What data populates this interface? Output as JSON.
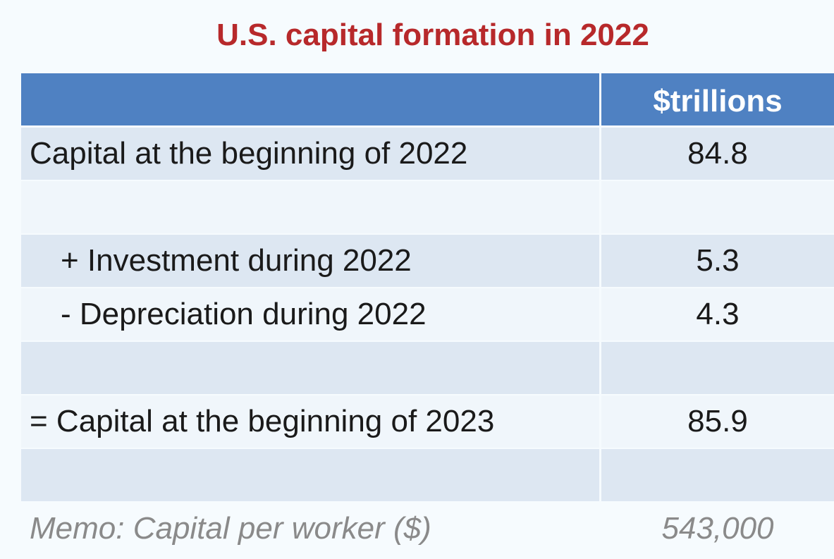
{
  "title": "U.S. capital formation in 2022",
  "table": {
    "header": {
      "label": "",
      "value": "$trillions"
    },
    "rows": [
      {
        "label": "Capital at the beginning of 2022",
        "value": "84.8"
      },
      {
        "label": "",
        "value": ""
      },
      {
        "label": "+ Investment during 2022",
        "value": "5.3"
      },
      {
        "label": "- Depreciation during 2022",
        "value": "4.3"
      },
      {
        "label": "",
        "value": ""
      },
      {
        "label": "= Capital at the beginning of 2023",
        "value": "85.9"
      },
      {
        "label": "",
        "value": ""
      }
    ],
    "memo": {
      "label": "Memo: Capital per worker ($)",
      "value": "543,000"
    }
  },
  "colors": {
    "title": "#b7292b",
    "header_bg": "#4f81c2",
    "row_shade": "#dde7f2",
    "row_light": "#f0f6fb",
    "memo_text": "#8a8a8a"
  }
}
